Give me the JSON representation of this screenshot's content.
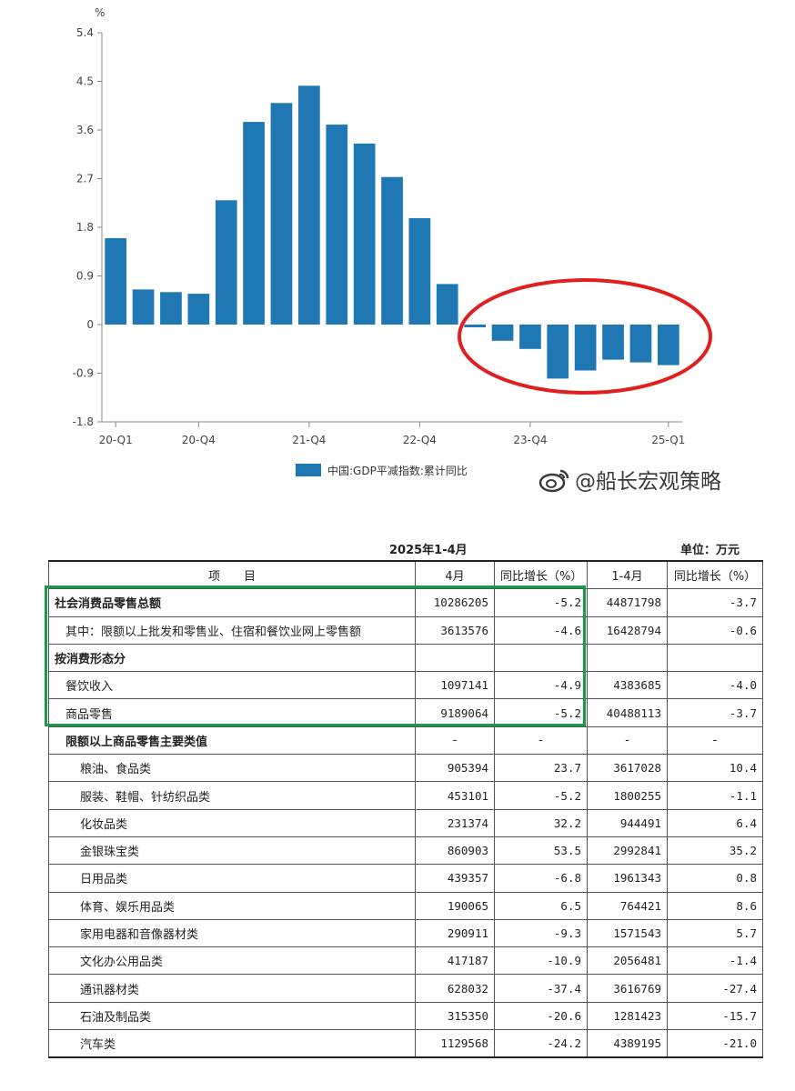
{
  "chart_data": {
    "type": "bar",
    "unit_label": "%",
    "categories": [
      "20-Q1",
      "20-Q2",
      "20-Q3",
      "20-Q4",
      "21-Q1",
      "21-Q2",
      "21-Q3",
      "21-Q4",
      "22-Q1",
      "22-Q2",
      "22-Q3",
      "22-Q4",
      "23-Q1",
      "23-Q2",
      "23-Q3",
      "23-Q4",
      "24-Q1",
      "24-Q2",
      "24-Q3",
      "24-Q4",
      "25-Q1"
    ],
    "series": [
      {
        "name": "中国:GDP平减指数:累计同比",
        "values": [
          1.6,
          0.65,
          0.6,
          0.57,
          2.3,
          3.75,
          4.1,
          4.42,
          3.7,
          3.35,
          2.73,
          1.97,
          0.75,
          -0.05,
          -0.3,
          -0.45,
          -1.0,
          -0.85,
          -0.65,
          -0.7,
          -0.75
        ]
      }
    ],
    "yticks": [
      "5.4",
      "4.5",
      "3.6",
      "2.7",
      "1.8",
      "0.9",
      "0",
      "-0.9",
      "-1.8"
    ],
    "ylim": [
      -1.8,
      5.4
    ],
    "xtick_labels": [
      "20-Q1",
      "20-Q4",
      "21-Q4",
      "22-Q4",
      "23-Q4",
      "25-Q1"
    ],
    "color": "#1f77b4",
    "highlight_color": "#e02020"
  },
  "watermark": "@船长宏观策略",
  "table": {
    "title": "2025年1-4月",
    "unit": "单位：万元",
    "headers": [
      "项　　目",
      "4月",
      "同比增长（%）",
      "1-4月",
      "同比增长（%）"
    ],
    "rows": [
      {
        "label": "社会消费品零售总额",
        "v1": "10286205",
        "g1": "-5.2",
        "v2": "44871798",
        "g2": "-3.7",
        "style": "bold"
      },
      {
        "label": "其中：限额以上批发和零售业、住宿和餐饮业网上零售额",
        "v1": "3613576",
        "g1": "-4.6",
        "v2": "16428794",
        "g2": "-0.6",
        "style": "ind1"
      },
      {
        "label": "按消费形态分",
        "v1": "",
        "g1": "",
        "v2": "",
        "g2": "",
        "style": "bold"
      },
      {
        "label": "餐饮收入",
        "v1": "1097141",
        "g1": "-4.9",
        "v2": "4383685",
        "g2": "-4.0",
        "style": "ind1"
      },
      {
        "label": "商品零售",
        "v1": "9189064",
        "g1": "-5.2",
        "v2": "40488113",
        "g2": "-3.7",
        "style": "ind1"
      },
      {
        "label": "限额以上商品零售主要类值",
        "v1": "-",
        "g1": "-",
        "v2": "-",
        "g2": "-",
        "style": "bold-ind1",
        "dash": true
      },
      {
        "label": "粮油、食品类",
        "v1": "905394",
        "g1": "23.7",
        "v2": "3617028",
        "g2": "10.4",
        "style": "ind2"
      },
      {
        "label": "服装、鞋帽、针纺织品类",
        "v1": "453101",
        "g1": "-5.2",
        "v2": "1800255",
        "g2": "-1.1",
        "style": "ind2"
      },
      {
        "label": "化妆品类",
        "v1": "231374",
        "g1": "32.2",
        "v2": "944491",
        "g2": "6.4",
        "style": "ind2"
      },
      {
        "label": "金银珠宝类",
        "v1": "860903",
        "g1": "53.5",
        "v2": "2992841",
        "g2": "35.2",
        "style": "ind2"
      },
      {
        "label": "日用品类",
        "v1": "439357",
        "g1": "-6.8",
        "v2": "1961343",
        "g2": "0.8",
        "style": "ind2"
      },
      {
        "label": "体育、娱乐用品类",
        "v1": "190065",
        "g1": "6.5",
        "v2": "764421",
        "g2": "8.6",
        "style": "ind2"
      },
      {
        "label": "家用电器和音像器材类",
        "v1": "290911",
        "g1": "-9.3",
        "v2": "1571543",
        "g2": "5.7",
        "style": "ind2"
      },
      {
        "label": "文化办公用品类",
        "v1": "417187",
        "g1": "-10.9",
        "v2": "2056481",
        "g2": "-1.4",
        "style": "ind2"
      },
      {
        "label": "通讯器材类",
        "v1": "628032",
        "g1": "-37.4",
        "v2": "3616769",
        "g2": "-27.4",
        "style": "ind2"
      },
      {
        "label": "石油及制品类",
        "v1": "315350",
        "g1": "-20.6",
        "v2": "1281423",
        "g2": "-15.7",
        "style": "ind2"
      },
      {
        "label": "汽车类",
        "v1": "1129568",
        "g1": "-24.2",
        "v2": "4389195",
        "g2": "-21.0",
        "style": "ind2"
      }
    ]
  }
}
